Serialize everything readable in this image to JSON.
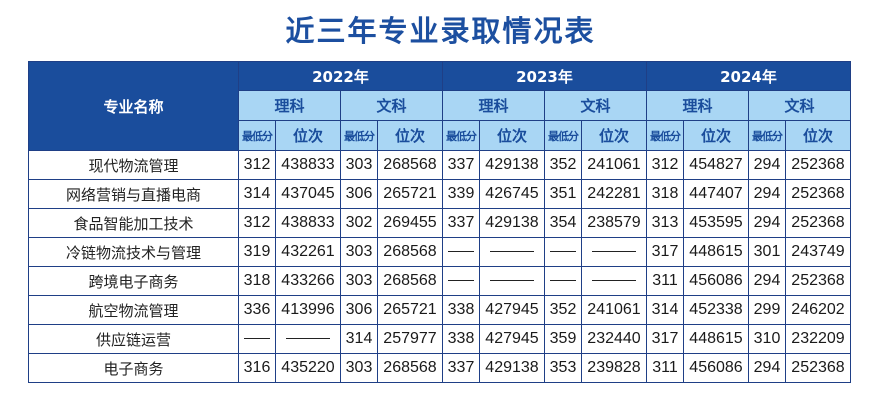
{
  "title": "近三年专业录取情况表",
  "header": {
    "major_label": "专业名称",
    "years": [
      "2022年",
      "2023年",
      "2024年"
    ],
    "science": "理科",
    "arts": "文科",
    "min_score": "最低分",
    "rank": "位次"
  },
  "rows": [
    {
      "major": "现代物流管理",
      "values": [
        "312",
        "438833",
        "303",
        "268568",
        "337",
        "429138",
        "352",
        "241061",
        "312",
        "454827",
        "294",
        "252368"
      ]
    },
    {
      "major": "网络营销与直播电商",
      "values": [
        "314",
        "437045",
        "306",
        "265721",
        "339",
        "426745",
        "351",
        "242281",
        "318",
        "447407",
        "294",
        "252368"
      ]
    },
    {
      "major": "食品智能加工技术",
      "values": [
        "312",
        "438833",
        "302",
        "269455",
        "337",
        "429138",
        "354",
        "238579",
        "313",
        "453595",
        "294",
        "252368"
      ]
    },
    {
      "major": "冷链物流技术与管理",
      "values": [
        "319",
        "432261",
        "303",
        "268568",
        "—",
        "—",
        "—",
        "—",
        "317",
        "448615",
        "301",
        "243749"
      ]
    },
    {
      "major": "跨境电子商务",
      "values": [
        "318",
        "433266",
        "303",
        "268568",
        "—",
        "—",
        "—",
        "—",
        "311",
        "456086",
        "294",
        "252368"
      ]
    },
    {
      "major": "航空物流管理",
      "values": [
        "336",
        "413996",
        "306",
        "265721",
        "338",
        "427945",
        "352",
        "241061",
        "314",
        "452338",
        "299",
        "246202"
      ]
    },
    {
      "major": "供应链运营",
      "values": [
        "—",
        "—",
        "314",
        "257977",
        "338",
        "427945",
        "359",
        "232440",
        "317",
        "448615",
        "310",
        "232209"
      ]
    },
    {
      "major": "电子商务",
      "values": [
        "316",
        "435220",
        "303",
        "268568",
        "337",
        "429138",
        "353",
        "239828",
        "311",
        "456086",
        "294",
        "252368"
      ]
    }
  ]
}
